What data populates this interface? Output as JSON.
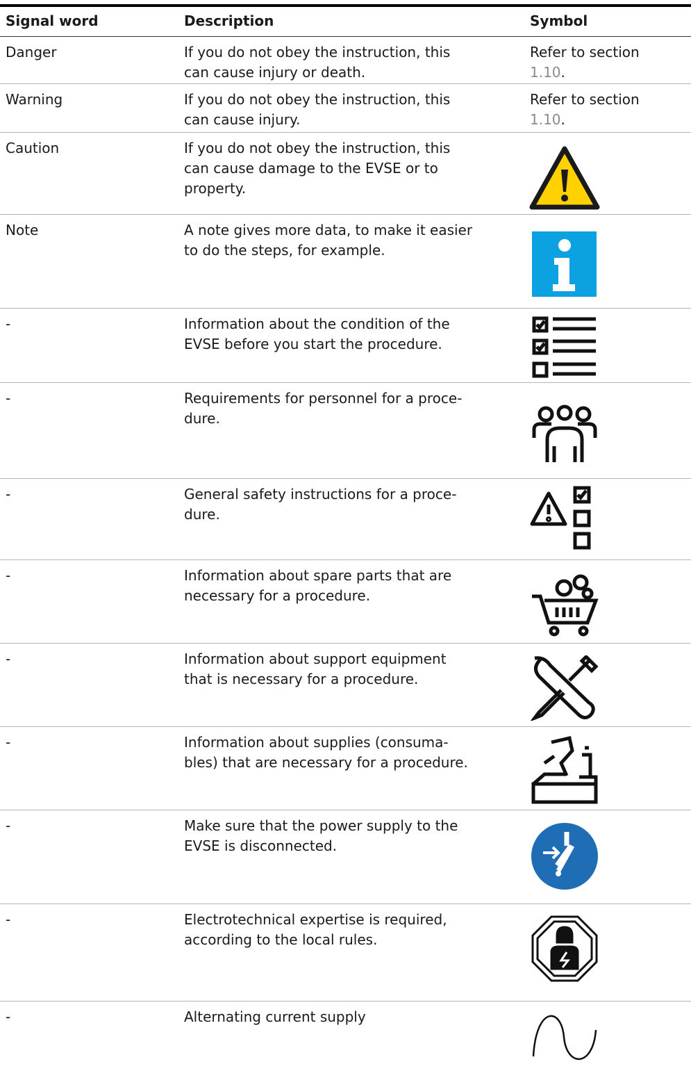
{
  "table": {
    "header": {
      "signal_word": "Signal word",
      "description": "Description",
      "symbol": "Symbol"
    },
    "rows": [
      {
        "signal_word": "Danger",
        "description": [
          "If you do not obey the instruction, this",
          "can cause injury or death."
        ],
        "symbol": {
          "text": "Refer to section",
          "link": "1.10",
          "suffix": "."
        }
      },
      {
        "signal_word": "Warning",
        "description": [
          "If you do not obey the instruction, this",
          "can cause injury."
        ],
        "symbol": {
          "text": "Refer to section",
          "link": "1.10",
          "suffix": "."
        }
      },
      {
        "signal_word": "Caution",
        "description": [
          "If you do not obey the instruction, this",
          "can cause damage to the EVSE or to",
          "property."
        ]
      },
      {
        "signal_word": "Note",
        "description": [
          "A note gives more data, to make it easier",
          "to do the steps, for example."
        ]
      },
      {
        "signal_word": "-",
        "description": [
          "Information about the condition of the",
          "EVSE before you start the procedure."
        ]
      },
      {
        "signal_word": "-",
        "description": [
          "Requirements for personnel for a proce-",
          "dure."
        ]
      },
      {
        "signal_word": "-",
        "description": [
          "General safety instructions for a proce-",
          "dure."
        ]
      },
      {
        "signal_word": "-",
        "description": [
          "Information about spare parts that are",
          "necessary for a procedure."
        ]
      },
      {
        "signal_word": "-",
        "description": [
          "Information about support equipment",
          "that is necessary for a procedure."
        ]
      },
      {
        "signal_word": "-",
        "description": [
          "Information about supplies (consuma-",
          "bles) that are necessary for a procedure."
        ]
      },
      {
        "signal_word": "-",
        "description": [
          "Make sure that the power supply to the",
          "EVSE is disconnected."
        ]
      },
      {
        "signal_word": "-",
        "description": [
          "Electrotechnical expertise is required,",
          "according to the local rules."
        ]
      },
      {
        "signal_word": "-",
        "description": [
          "Alternating current supply"
        ]
      }
    ]
  }
}
